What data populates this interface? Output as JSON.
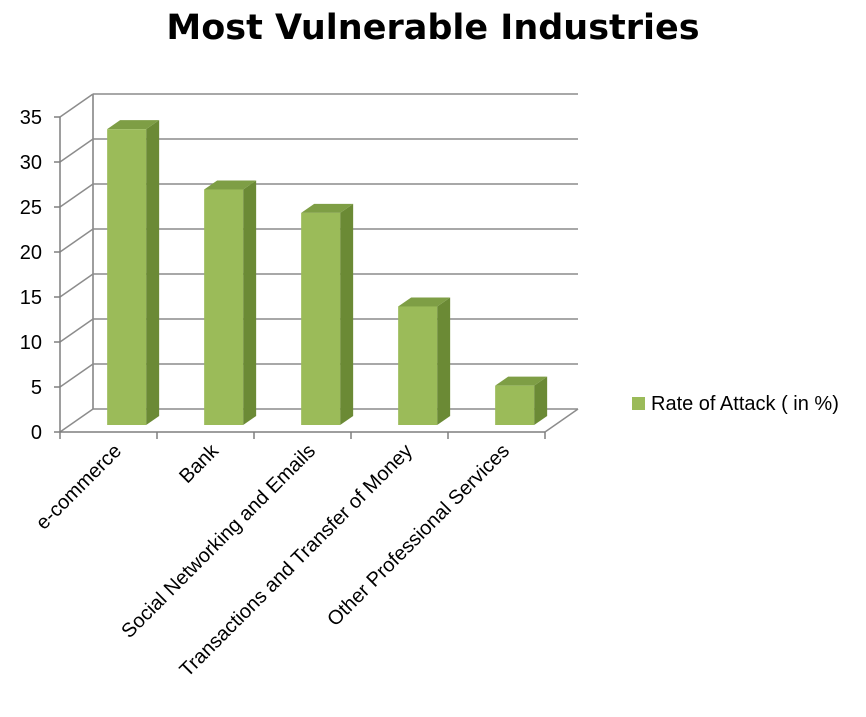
{
  "chart_data": {
    "type": "bar",
    "title": "Most Vulnerable Industries",
    "categories": [
      "e-commerce",
      "Bank",
      "Social Networking and Emails",
      "Transactions and Transfer of Money",
      "Other Professional Services"
    ],
    "series": [
      {
        "name": "Rate of Attack ( in %)",
        "values": [
          32.5,
          25.8,
          23.2,
          12.8,
          4.0
        ]
      }
    ],
    "ylim": [
      0,
      35
    ],
    "yticks": [
      "0",
      "5",
      "10",
      "15",
      "20",
      "25",
      "30",
      "35"
    ],
    "xlabel": "",
    "ylabel": "",
    "grid": true,
    "legend_position": "right",
    "colors": {
      "bar_front": "#9BBB59",
      "bar_side": "#6B8A35",
      "bar_top": "#7E9E45",
      "gridline": "#8C8C8C",
      "axis": "#7F7F7F"
    }
  }
}
